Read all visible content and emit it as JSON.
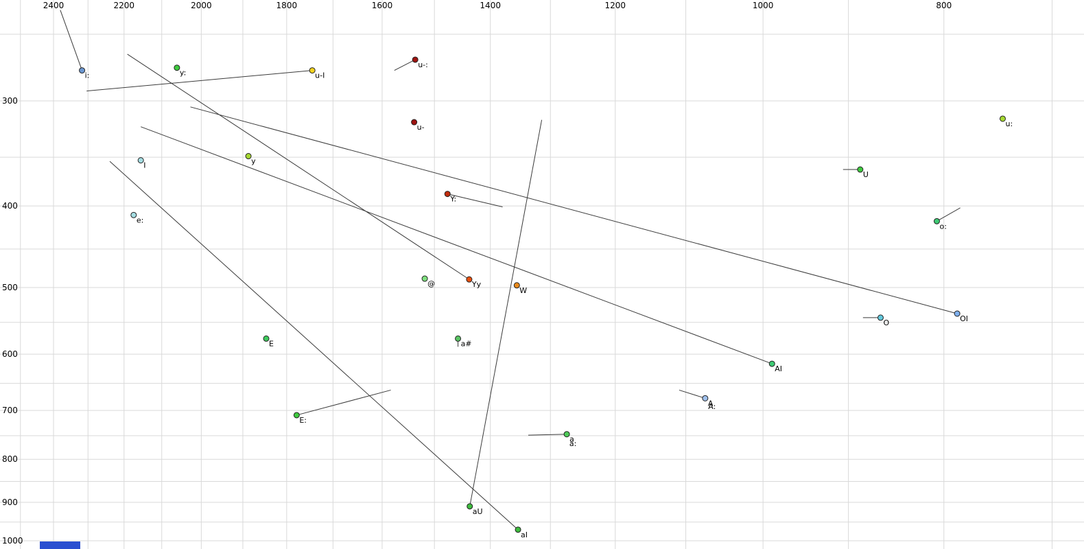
{
  "chart_data": {
    "type": "scatter",
    "description": "Vowel formant scatter plot (F2 horizontal reversed log scale, F1 vertical log scale) with diphthong trajectory lines",
    "x_axis": {
      "tick_labels": [
        "2400",
        "2200",
        "2000",
        "1800",
        "1600",
        "1400",
        "1200",
        "1000",
        "800"
      ],
      "tick_values": [
        2400,
        2200,
        2000,
        1800,
        1600,
        1400,
        1200,
        1000,
        800
      ],
      "scale": "log",
      "direction": "reversed",
      "grid_step": 100,
      "grid_min": 700,
      "grid_max": 2500
    },
    "y_axis": {
      "tick_labels": [
        "300",
        "400",
        "500",
        "600",
        "700",
        "800",
        "900",
        "1000"
      ],
      "tick_values": [
        300,
        400,
        500,
        600,
        700,
        800,
        900,
        1000
      ],
      "scale": "log",
      "direction": "down",
      "grid_step": 50,
      "grid_min": 250,
      "grid_max": 1000
    },
    "points": [
      {
        "label": "i:",
        "f2": 2317,
        "f1": 276,
        "color": "#6b97d1"
      },
      {
        "label": "y:",
        "f2": 2061,
        "f1": 274,
        "color": "#3fca3f"
      },
      {
        "label": "u-I",
        "f2": 1744,
        "f1": 276,
        "color": "#f2d21f"
      },
      {
        "label": "u-:",
        "f2": 1536,
        "f1": 268,
        "color": "#9e1310"
      },
      {
        "label": "u-",
        "f2": 1538,
        "f1": 318,
        "color": "#9e1310"
      },
      {
        "label": "y",
        "f2": 1887,
        "f1": 349,
        "color": "#a5d832"
      },
      {
        "label": "I",
        "f2": 2155,
        "f1": 353,
        "color": "#a5dde2"
      },
      {
        "label": "e:",
        "f2": 2174,
        "f1": 410,
        "color": "#a5dde2"
      },
      {
        "label": "Y:",
        "f2": 1476,
        "f1": 387,
        "color": "#c22d0e"
      },
      {
        "label": "U",
        "f2": 887,
        "f1": 362,
        "color": "#3fca3f"
      },
      {
        "label": "u:",
        "f2": 744,
        "f1": 315,
        "color": "#a5d832"
      },
      {
        "label": "o:",
        "f2": 807,
        "f1": 417,
        "color": "#3eca74"
      },
      {
        "label": "@",
        "f2": 1518,
        "f1": 488,
        "color": "#7fe07f"
      },
      {
        "label": "Yy",
        "f2": 1437,
        "f1": 489,
        "color": "#e8500f"
      },
      {
        "label": "W",
        "f2": 1355,
        "f1": 497,
        "color": "#e8891a"
      },
      {
        "label": "O",
        "f2": 865,
        "f1": 543,
        "color": "#62c8dc"
      },
      {
        "label": "OI",
        "f2": 787,
        "f1": 537,
        "color": "#7fb0ee"
      },
      {
        "label": "E",
        "f2": 1846,
        "f1": 575,
        "color": "#3eca5d"
      },
      {
        "label": "a#",
        "f2": 1457,
        "f1": 575,
        "color": "#59c463"
      },
      {
        "label": "AI",
        "f2": 989,
        "f1": 616,
        "color": "#3eca74"
      },
      {
        "label": "A",
        "f2": 1074,
        "f1": 677,
        "color": "#9fc0ec"
      },
      {
        "label": "E:",
        "f2": 1778,
        "f1": 709,
        "color": "#3fca3f"
      },
      {
        "label": "aU",
        "f2": 1436,
        "f1": 910,
        "color": "#3fbc3f"
      },
      {
        "label": "aI",
        "f2": 1353,
        "f1": 970,
        "color": "#3fbc3f"
      },
      {
        "label": "a",
        "f2": 1274,
        "f1": 747,
        "color": "#4ecb59"
      }
    ],
    "extra_labels": [
      {
        "label": "A:",
        "f2": 1070,
        "f1": 692
      },
      {
        "label": "a:",
        "f2": 1270,
        "f1": 766
      }
    ],
    "segments": [
      {
        "f2a": 2380,
        "f1a": 234,
        "f2b": 2317,
        "f1b": 276
      },
      {
        "f2a": 2304,
        "f1a": 292,
        "f2b": 1744,
        "f1b": 276
      },
      {
        "f2a": 1576,
        "f1a": 276,
        "f2b": 1536,
        "f1b": 268
      },
      {
        "f2a": 1476,
        "f1a": 387,
        "f2b": 1379,
        "f1b": 401
      },
      {
        "f2a": 2191,
        "f1a": 264,
        "f2b": 1437,
        "f1b": 489
      },
      {
        "f2a": 2155,
        "f1a": 322,
        "f2b": 989,
        "f1b": 616
      },
      {
        "f2a": 2027,
        "f1a": 305,
        "f2b": 787,
        "f1b": 537
      },
      {
        "f2a": 2239,
        "f1a": 354,
        "f2b": 1353,
        "f1b": 970
      },
      {
        "f2a": 1314,
        "f1a": 316,
        "f2b": 1436,
        "f1b": 910
      },
      {
        "f2a": 1583,
        "f1a": 662,
        "f2b": 1778,
        "f1b": 709
      },
      {
        "f2a": 906,
        "f1a": 362,
        "f2b": 887,
        "f1b": 362
      },
      {
        "f2a": 884,
        "f1a": 543,
        "f2b": 865,
        "f1b": 543
      },
      {
        "f2a": 784,
        "f1a": 402,
        "f2b": 807,
        "f1b": 417
      },
      {
        "f2a": 1109,
        "f1a": 662,
        "f2b": 1074,
        "f1b": 677
      },
      {
        "f2a": 1336,
        "f1a": 749,
        "f2b": 1274,
        "f1b": 747
      },
      {
        "f2a": 1457,
        "f1a": 575,
        "f2b": 1457,
        "f1b": 588
      }
    ],
    "colors": {
      "grid": "#d9d9d9",
      "segment": "#3a3a3a",
      "text": "#000000",
      "point_stroke": "#222222",
      "background": "#ffffff"
    }
  },
  "misc": {
    "bottom_left_bar_color": "#2b50d0"
  }
}
